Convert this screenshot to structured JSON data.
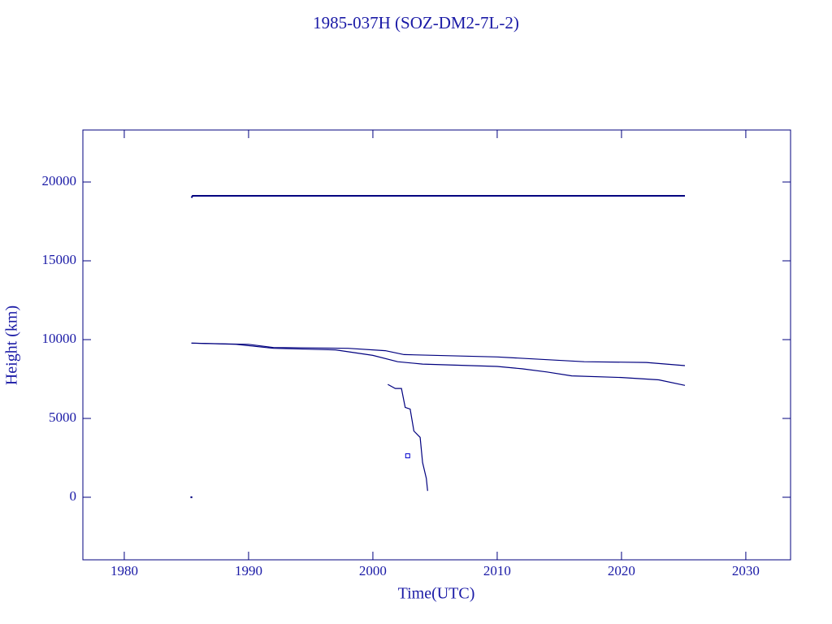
{
  "chart_data": {
    "type": "line",
    "title": "1985-037H (SOZ-DM2-7L-2)",
    "x_label": "Time(UTC)",
    "y_label": "Height (km)",
    "xlim": [
      1976.67,
      2033.6
    ],
    "xticks": [
      1980,
      1990,
      2000,
      2010,
      2020,
      2030
    ],
    "ylim": [
      -3970,
      23300
    ],
    "yticks": [
      0,
      5000,
      10000,
      15000,
      20000
    ],
    "color": "#00007f",
    "series": [
      {
        "color": "#00007f",
        "x": [
          1985.4,
          1985.5,
          2025.1
        ],
        "values": [
          19000,
          19124,
          19124
        ]
      },
      {
        "color": "#00007f",
        "x": [
          1985.4,
          1990,
          1992,
          1998,
          2001,
          2002.5,
          2010,
          2017,
          2022,
          2025.1
        ],
        "values": [
          9780,
          9700,
          9500,
          9450,
          9300,
          9050,
          8900,
          8600,
          8550,
          8350
        ]
      },
      {
        "color": "#00007f",
        "x": [
          1985.4,
          1989,
          1992,
          1997,
          2000,
          2002,
          2004,
          2010,
          2012,
          2014,
          2016,
          2020,
          2023,
          2025.1
        ],
        "values": [
          9780,
          9700,
          9450,
          9350,
          9000,
          8600,
          8450,
          8300,
          8150,
          7950,
          7700,
          7600,
          7450,
          7100
        ]
      },
      {
        "color": "#00007f",
        "x": [
          2001.2,
          2001.8,
          2002.3,
          2002.6,
          2003.0,
          2003.3,
          2003.8,
          2004.0,
          2004.3,
          2004.4
        ],
        "values": [
          7160,
          6900,
          6900,
          5700,
          5600,
          4200,
          3800,
          2200,
          1200,
          400
        ]
      },
      {
        "color": "#0000cc",
        "marker": "square",
        "x": [
          2002.8
        ],
        "values": [
          2630
        ]
      },
      {
        "color": "#00007f",
        "marker": "dot",
        "x": [
          1985.4
        ],
        "values": [
          0
        ]
      }
    ]
  }
}
